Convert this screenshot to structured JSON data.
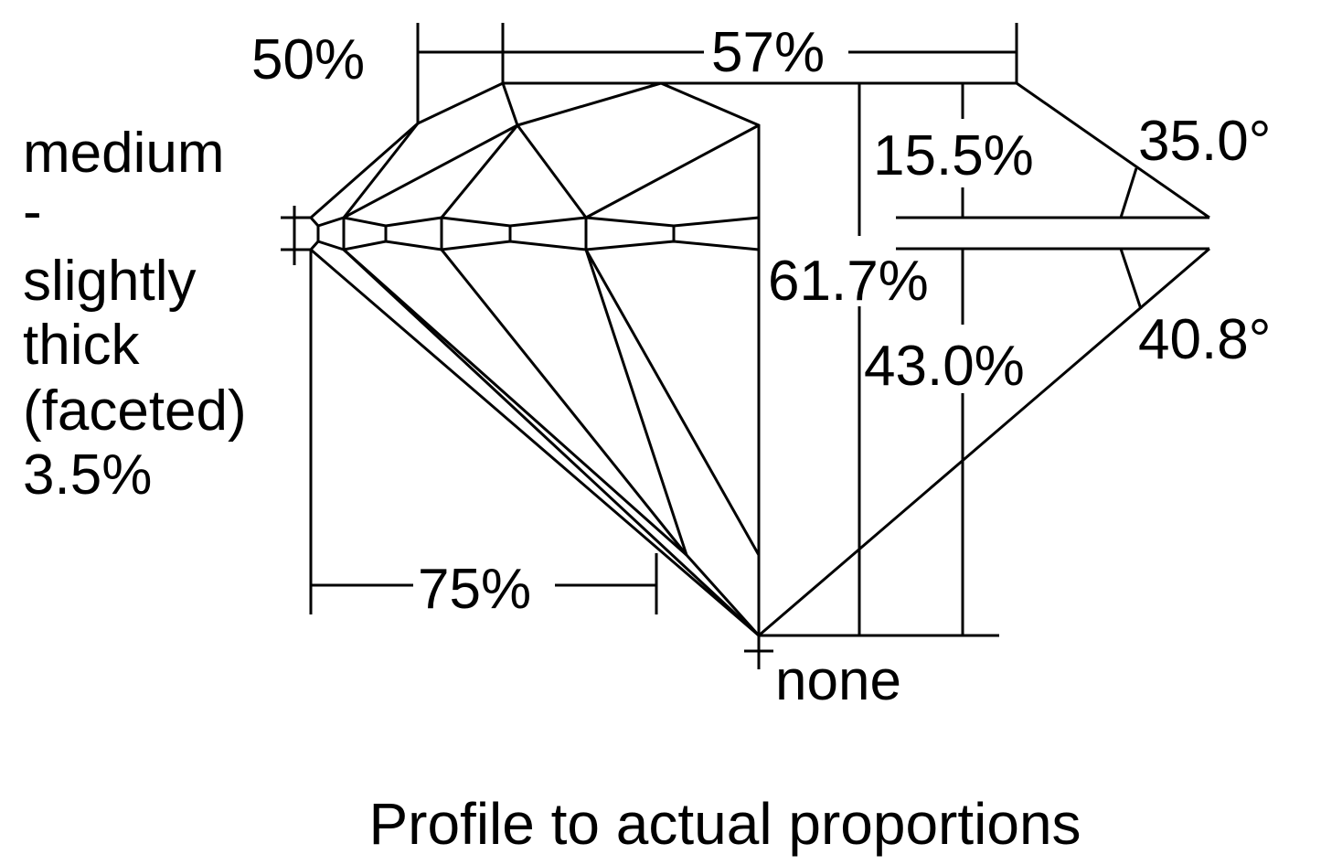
{
  "diagram": {
    "title": "Profile to actual proportions",
    "girdle_label": [
      "medium",
      "-",
      "slightly",
      "thick",
      "(faceted)",
      "3.5%"
    ],
    "lower_girdle_pct": "50%",
    "table_pct": "57%",
    "crown_height_pct": "15.5%",
    "crown_angle": "35.0°",
    "total_depth_pct": "61.7%",
    "pavilion_depth_pct": "43.0%",
    "pavilion_angle": "40.8°",
    "lower_half_pct": "75%",
    "culet": "none",
    "line_color": "#000000",
    "background": "#ffffff"
  }
}
